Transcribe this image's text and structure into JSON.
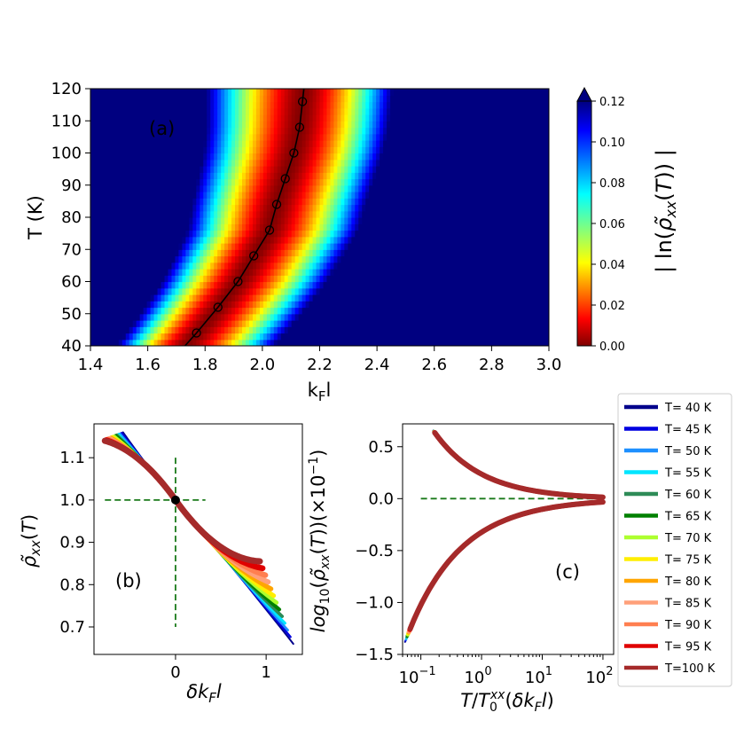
{
  "chart_data": [
    {
      "type": "heatmap",
      "panel_label": "(a)",
      "xlabel": "k_F l",
      "ylabel": "T (K)",
      "xlim": [
        1.4,
        3.0
      ],
      "ylim": [
        40,
        120
      ],
      "xticks": [
        1.4,
        1.6,
        1.8,
        2.0,
        2.2,
        2.4,
        2.6,
        2.8,
        3.0
      ],
      "yticks": [
        40,
        50,
        60,
        70,
        80,
        90,
        100,
        110,
        120
      ],
      "colorbar": {
        "label": "| ln(ρ̃_xx(T)) |",
        "range": [
          0.0,
          0.12
        ],
        "ticks": [
          "0.00",
          "0.02",
          "0.04",
          "0.06",
          "0.08",
          "0.10",
          "0.12"
        ],
        "colormap": "jet_r",
        "extend": "max"
      },
      "separatrix": {
        "T": [
          44,
          52,
          60,
          68,
          76,
          84,
          92,
          100,
          108,
          116
        ],
        "kFl": [
          1.77,
          1.845,
          1.915,
          1.97,
          2.025,
          2.05,
          2.08,
          2.11,
          2.13,
          2.14
        ]
      },
      "separatrix_curve": {
        "T": [
          40,
          44,
          52,
          60,
          68,
          76,
          84,
          92,
          100,
          108,
          116,
          120
        ],
        "kFl": [
          1.73,
          1.77,
          1.845,
          1.915,
          1.97,
          2.025,
          2.05,
          2.08,
          2.11,
          2.13,
          2.14,
          2.145
        ]
      }
    },
    {
      "type": "line",
      "panel_label": "(b)",
      "xlabel": "δk_F l",
      "ylabel": "ρ̃_xx(T)",
      "xlim": [
        -0.9,
        1.4
      ],
      "ylim": [
        0.635,
        1.18
      ],
      "xticks": [
        "0",
        "1"
      ],
      "yticks": [
        "0.7",
        "0.8",
        "0.9",
        "1.0",
        "1.1"
      ],
      "crosshair": {
        "x": 0,
        "y": 1.0
      },
      "series_by_T": [
        40,
        45,
        50,
        55,
        60,
        65,
        70,
        75,
        80,
        85,
        90,
        95,
        100
      ]
    },
    {
      "type": "line",
      "panel_label": "(c)",
      "xlabel": "T/T_0^xx(δk_F l)",
      "ylabel": "log10(ρ̃_xx(T))(×10^-1)",
      "xscale": "log",
      "xlim": [
        0.05,
        150
      ],
      "ylim": [
        -1.5,
        0.72
      ],
      "xticks": [
        "10",
        "10",
        "10",
        "10"
      ],
      "xtick_exponents": [
        "−1",
        "0",
        "1",
        "2"
      ],
      "yticks": [
        "0.5",
        "0.0",
        "−0.5",
        "−1.0",
        "−1.5"
      ],
      "baseline": 0.0
    }
  ],
  "legend": {
    "entries": [
      {
        "label": "T= 40 K",
        "color": "#00008b"
      },
      {
        "label": "T= 45 K",
        "color": "#0000e0"
      },
      {
        "label": "T= 50 K",
        "color": "#1e90ff"
      },
      {
        "label": "T= 55 K",
        "color": "#00e5ff"
      },
      {
        "label": "T= 60 K",
        "color": "#2e8b57"
      },
      {
        "label": "T= 65 K",
        "color": "#008000"
      },
      {
        "label": "T= 70 K",
        "color": "#adff2f"
      },
      {
        "label": "T= 75 K",
        "color": "#ffee00"
      },
      {
        "label": "T= 80 K",
        "color": "#ffa500"
      },
      {
        "label": "T= 85 K",
        "color": "#ffa07a"
      },
      {
        "label": "T= 90 K",
        "color": "#ff7f50"
      },
      {
        "label": "T= 95 K",
        "color": "#e00000"
      },
      {
        "label": "T=100 K",
        "color": "#a52a2a"
      }
    ]
  },
  "colors": {
    "crosshair": "#1a7a1a",
    "separatrix": "#000000"
  }
}
